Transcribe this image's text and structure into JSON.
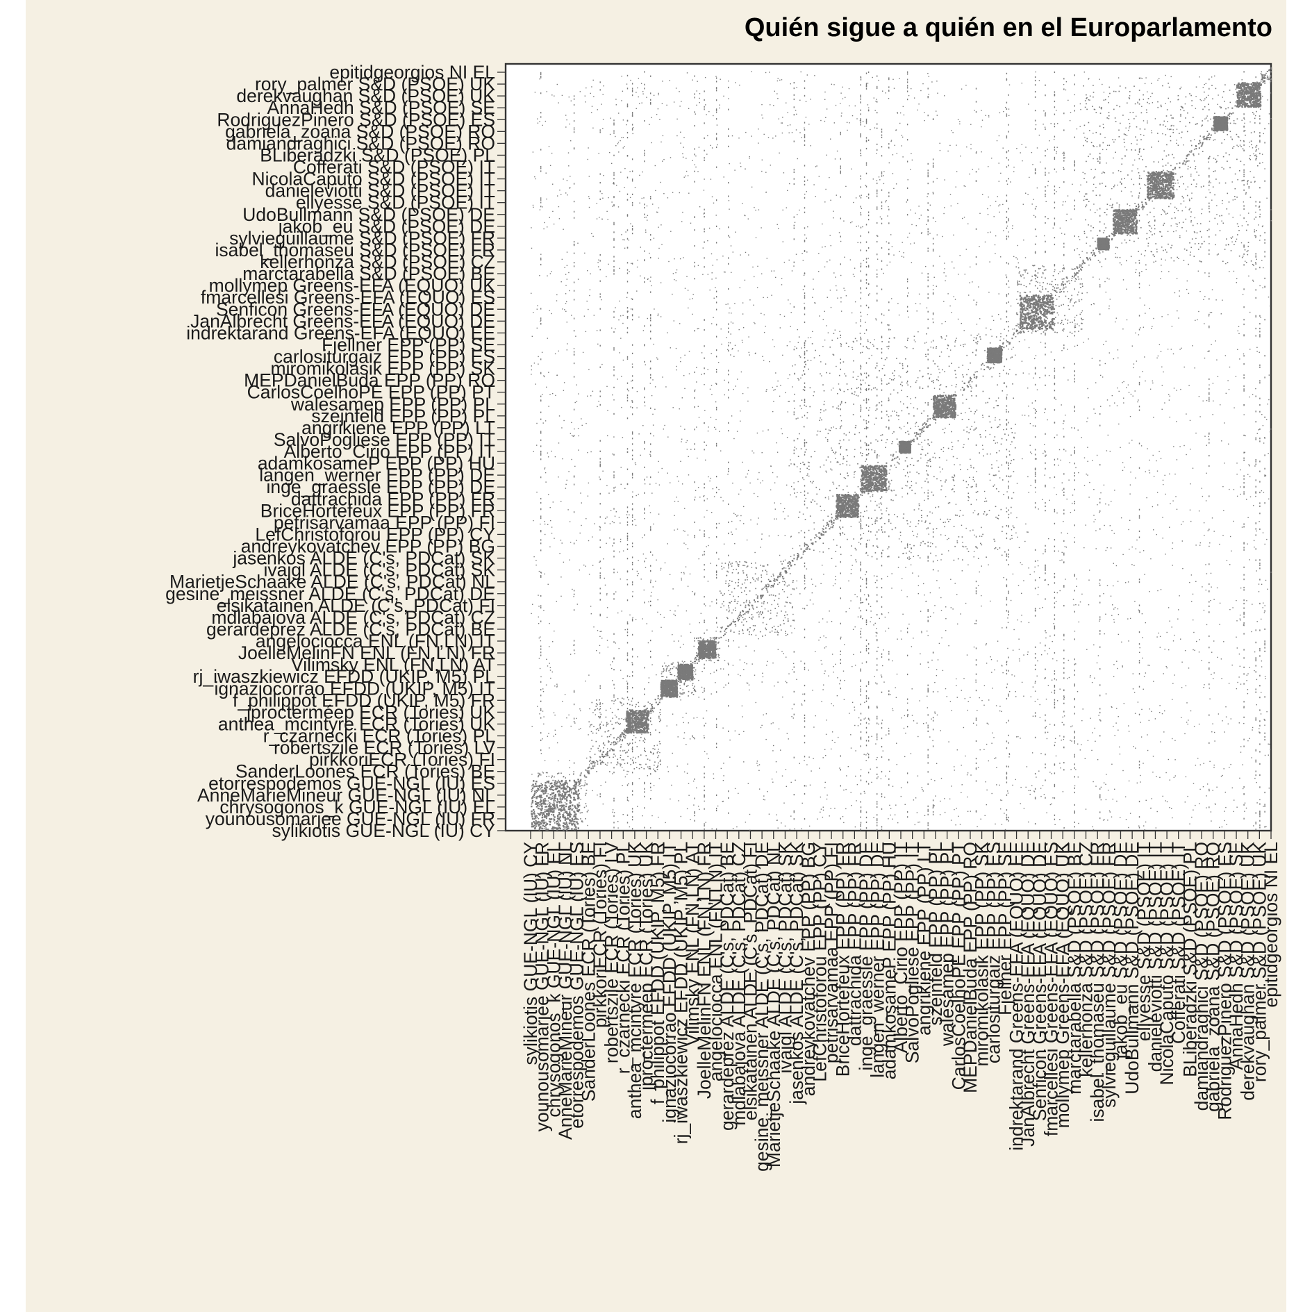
{
  "colors": {
    "background": "#F5F0E3",
    "panel": "#FFFFFF",
    "cell": "#7A7A7A",
    "frame": "#333333",
    "text": "#1A1A1A"
  },
  "chart_data": {
    "type": "heatmap",
    "title": "Quién sigue a quién en el Europarlamento",
    "xlabel": "",
    "ylabel": "",
    "matrix_order": "Rows and columns share the same ordered list of MEP accounts; x labels are printed bottom-to-top, y labels bottom-to-top starting at the origin.",
    "labels": [
      "sylikiotis GUE-NGL (IU) CY",
      "younousomarjee GUE-NGL (IU) FR",
      "chrysogonos_k GUE-NGL (IU) EL",
      "AnneMarieMineur GUE-NGL (IU) NL",
      "etorrespodemos GUE-NGL (IU) ES",
      "SanderLoones ECR (Tories) BE",
      "pirkkoriECR (Tories) FI",
      "robertszile ECR (Tories) LV",
      "r_czarnecki ECR (Tories) PL",
      "anthea_mcintyre ECR (Tories) UK",
      "jprocterméep ECR (Tories) UK",
      "f_philippot EFDD (UKIP, M5) FR",
      "ignaziocorrao EFDD (UKIP, M5) IT",
      "rj_iwaszkiewicz EFDD (UKIP, M5) PL",
      "Vilimsky ENL (FN,LN) AT",
      "JoelleMelinFN ENL (FN,LN) FR",
      "angelociocca ENL (FN,LN) IT",
      "gerardeprez ALDE (C's, PDCat) BE",
      "mdlabajova ALDE (C's, PDCat) CZ",
      "elsikatainen ALDE (C's, PDCat) FI",
      "gesine_meissner ALDE (C's, PDCat) DE",
      "MarietjeSchaake ALDE (C's, PDCat) NL",
      "ivajgl ALDE (C's, PDCat) SK",
      "jasenkos ALDE (C's, PDCat) SK",
      "andreykovatchev EPP (PP) BG",
      "LefChristoforou EPP (PP) CY",
      "petrisarvamaa EPP (PP) FI",
      "BriceHortefeux EPP (PP) FR",
      "dattrachida EPP (PP) FR",
      "inge_graessle EPP (PP) DE",
      "langen_werner EPP (PP) DE",
      "adamkosameP EPP (PP) HU",
      "Alberto_Cirio EPP (PP) IT",
      "SalvoPogliese EPP (PP) IT",
      "angrikiene EPP (PP) LT",
      "szejnfeld EPP (PP) PL",
      "walesamep EPP (PP) PL",
      "CarlosCoelhoPE EPP (PP) PT",
      "MEPDanielBuda EPP (PP) RO",
      "miromikolasik EPP (PP) SK",
      "carlositurgaiz EPP (PP) ES",
      "Fjellner EPP (PP) SE",
      "indrektarand Greens-EFA (EQUO) EE",
      "JanAlbrecht Greens-EFA (EQUO) DE",
      "Senficon Greens-EFA (EQUO) DE",
      "fmarcellesi Greens-EFA (EQUO) ES",
      "mollymep Greens-EFA (EQUO) UK",
      "marctarabella S&D (PSOE) BE",
      "kellerhonza S&D (PSOE) CZ",
      "isabel_thomaseu S&D (PSOE) FR",
      "sylvieguillaume S&D (PSOE) FR",
      "jakob_eu S&D (PSOE) DE",
      "UdoBullmann S&D (PSOE) DE",
      "ellyesse S&D (PSOE) IT",
      "danieleviotti S&D (PSOE) IT",
      "NicolaCaputo S&D (PSOE) IT",
      "Cofferati S&D (PSOE) IT",
      "BLiberadzki S&D (PSOE) PL",
      "damiandraghici S&D (PSOE) RO",
      "gabriela_zoana S&D (PSOE) RO",
      "RodriguezPinero S&D (PSOE) ES",
      "AnnaHedh S&D (PSOE) SE",
      "derekvaughan S&D (PSOE) UK",
      "rory_palmer S&D (PSOE) UK",
      "epitidgeorgios NI EL"
    ],
    "groups": [
      {
        "name": "GUE-NGL (IU)",
        "start": 0,
        "end": 0.077
      },
      {
        "name": "ECR (Tories)",
        "start": 0.077,
        "end": 0.175
      },
      {
        "name": "EFDD (UKIP, M5)",
        "start": 0.175,
        "end": 0.223
      },
      {
        "name": "ENL (FN,LN)",
        "start": 0.223,
        "end": 0.255
      },
      {
        "name": "ALDE (C's, PDCat)",
        "start": 0.255,
        "end": 0.355
      },
      {
        "name": "EPP (PP)",
        "start": 0.355,
        "end": 0.655
      },
      {
        "name": "Greens-EFA (EQUO)",
        "start": 0.655,
        "end": 0.745
      },
      {
        "name": "S&D (PSOE)",
        "start": 0.745,
        "end": 0.985
      },
      {
        "name": "NI",
        "start": 0.985,
        "end": 1.0
      }
    ],
    "dense_blocks": [
      {
        "start": 0.0,
        "end": 0.065
      },
      {
        "start": 0.128,
        "end": 0.158
      },
      {
        "start": 0.175,
        "end": 0.197
      },
      {
        "start": 0.198,
        "end": 0.218
      },
      {
        "start": 0.226,
        "end": 0.249
      },
      {
        "start": 0.412,
        "end": 0.442
      },
      {
        "start": 0.446,
        "end": 0.48
      },
      {
        "start": 0.497,
        "end": 0.512
      },
      {
        "start": 0.543,
        "end": 0.573
      },
      {
        "start": 0.616,
        "end": 0.635
      },
      {
        "start": 0.66,
        "end": 0.705
      },
      {
        "start": 0.765,
        "end": 0.78
      },
      {
        "start": 0.786,
        "end": 0.818
      },
      {
        "start": 0.832,
        "end": 0.868
      },
      {
        "start": 0.922,
        "end": 0.94
      },
      {
        "start": 0.953,
        "end": 0.985
      }
    ],
    "grid": false,
    "legend": "none"
  }
}
